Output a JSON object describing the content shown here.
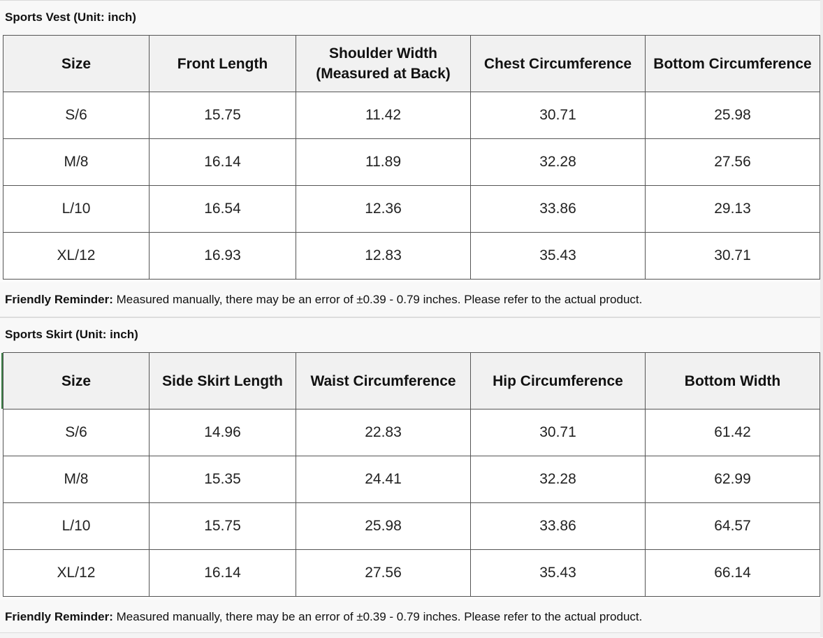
{
  "vest": {
    "title": "Sports Vest (Unit: inch)",
    "headers": [
      "Size",
      "Front Length",
      "Shoulder Width\n(Measured at Back)",
      "Chest Circumference",
      "Bottom Circumference"
    ],
    "rows": [
      [
        "S/6",
        "15.75",
        "11.42",
        "30.71",
        "25.98"
      ],
      [
        "M/8",
        "16.14",
        "11.89",
        "32.28",
        "27.56"
      ],
      [
        "L/10",
        "16.54",
        "12.36",
        "33.86",
        "29.13"
      ],
      [
        "XL/12",
        "16.93",
        "12.83",
        "35.43",
        "30.71"
      ]
    ],
    "note_label": "Friendly Reminder:",
    "note_text": " Measured manually, there may be an error of ±0.39 - 0.79 inches. Please refer to the actual product."
  },
  "skirt": {
    "title": "Sports Skirt (Unit: inch)",
    "headers": [
      "Size",
      "Side Skirt Length",
      "Waist Circumference",
      "Hip Circumference",
      "Bottom Width"
    ],
    "rows": [
      [
        "S/6",
        "14.96",
        "22.83",
        "30.71",
        "61.42"
      ],
      [
        "M/8",
        "15.35",
        "24.41",
        "32.28",
        "62.99"
      ],
      [
        "L/10",
        "15.75",
        "25.98",
        "33.86",
        "64.57"
      ],
      [
        "XL/12",
        "16.14",
        "27.56",
        "35.43",
        "66.14"
      ]
    ],
    "note_label": "Friendly Reminder:",
    "note_text": " Measured manually, there may be an error of ±0.39 - 0.79 inches. Please refer to the actual product."
  }
}
